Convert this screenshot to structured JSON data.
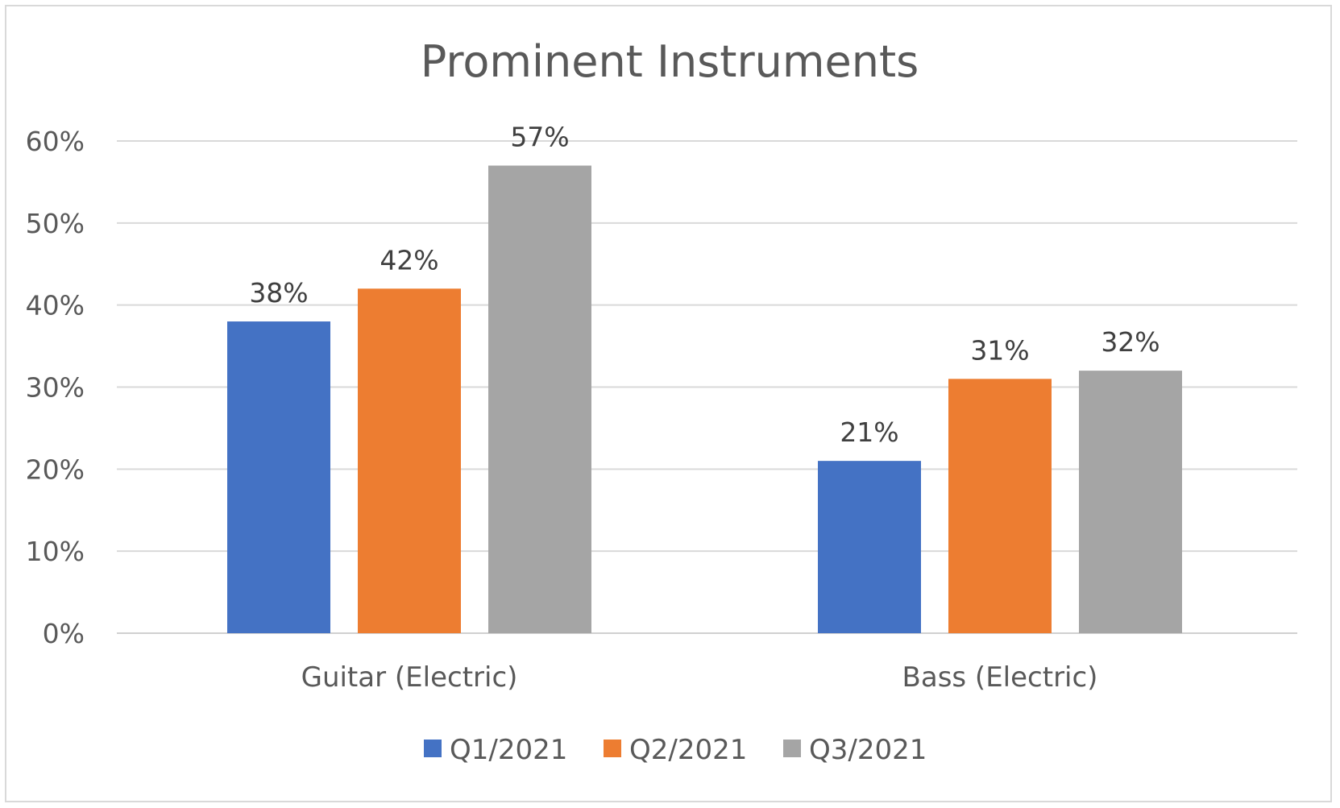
{
  "chart_data": {
    "type": "bar",
    "title": "Prominent Instruments",
    "categories": [
      "Guitar (Electric)",
      "Bass (Electric)"
    ],
    "series": [
      {
        "name": "Q1/2021",
        "values": [
          38,
          21
        ],
        "color": "#4472C4"
      },
      {
        "name": "Q2/2021",
        "values": [
          42,
          31
        ],
        "color": "#ED7D31"
      },
      {
        "name": "Q3/2021",
        "values": [
          57,
          32
        ],
        "color": "#A5A5A5"
      }
    ],
    "value_labels": [
      [
        "38%",
        "21%"
      ],
      [
        "42%",
        "31%"
      ],
      [
        "57%",
        "32%"
      ]
    ],
    "ylim": [
      0,
      60
    ],
    "yticks": [
      0,
      10,
      20,
      30,
      40,
      50,
      60
    ],
    "ytick_labels": [
      "0%",
      "10%",
      "20%",
      "30%",
      "40%",
      "50%",
      "60%"
    ],
    "grid": true,
    "legend_position": "bottom"
  }
}
